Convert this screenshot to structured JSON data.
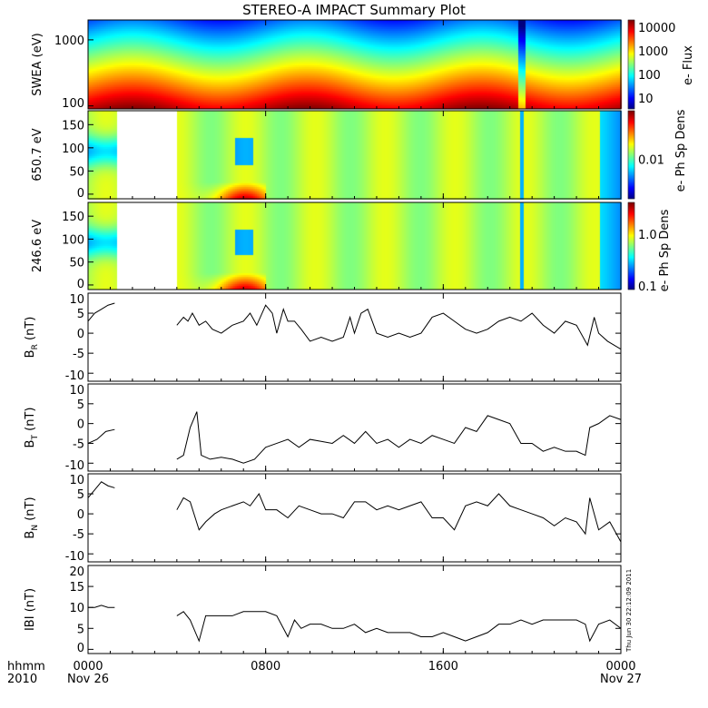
{
  "chart_data": {
    "type": "line",
    "title": "STEREO-A IMPACT Summary Plot",
    "x_unit": "hours since 2010 Nov 26 0000",
    "xlim": [
      0,
      24
    ],
    "x_ticks": [
      {
        "value": 0,
        "label": "0000",
        "sub": "Nov 26"
      },
      {
        "value": 8,
        "label": "0800",
        "sub": ""
      },
      {
        "value": 16,
        "label": "1600",
        "sub": ""
      },
      {
        "value": 24,
        "label": "0000",
        "sub": "Nov 27"
      }
    ],
    "x_axis_label": "hhmm",
    "x_axis_year": "2010",
    "timestamp": "Thu Jun 30 22:12:09 2011",
    "spectrograms": [
      {
        "ylabel": "SWEA (eV)",
        "type": "heatmap",
        "yscale": "log",
        "ylim": [
          90,
          2000
        ],
        "yticks": [
          {
            "v": 100,
            "l": "100"
          },
          {
            "v": 1000,
            "l": "1000"
          }
        ],
        "colorbar_label": "e- Flux",
        "colorbar_ticks": [
          "10",
          "100",
          "1000",
          "10000"
        ]
      },
      {
        "ylabel": "650.7 eV",
        "type": "heatmap",
        "ylim": [
          -10,
          180
        ],
        "yticks": [
          {
            "v": 0,
            "l": "0"
          },
          {
            "v": 50,
            "l": "50"
          },
          {
            "v": 100,
            "l": "100"
          },
          {
            "v": 150,
            "l": "150"
          }
        ],
        "colorbar_label": "e- Ph Sp Dens",
        "colorbar_ticks": [
          "0.01"
        ],
        "data_gap": [
          1.25,
          4.0
        ]
      },
      {
        "ylabel": "246.6 eV",
        "type": "heatmap",
        "ylim": [
          -10,
          180
        ],
        "yticks": [
          {
            "v": 0,
            "l": "0"
          },
          {
            "v": 50,
            "l": "50"
          },
          {
            "v": 100,
            "l": "100"
          },
          {
            "v": 150,
            "l": "150"
          }
        ],
        "colorbar_label": "e- Ph Sp Dens",
        "colorbar_ticks": [
          "0.1",
          "1.0"
        ],
        "data_gap": [
          1.25,
          4.0
        ]
      }
    ],
    "series": [
      {
        "name": "BR",
        "ylabel": "B",
        "sub": "R",
        "unit": "(nT)",
        "ylim": [
          -12,
          10
        ],
        "yticks": [
          -10,
          -5,
          0,
          5,
          10
        ],
        "segments": [
          [
            [
              0,
              3
            ],
            [
              0.3,
              5
            ],
            [
              0.6,
              6
            ],
            [
              0.9,
              7
            ],
            [
              1.2,
              7.5
            ]
          ],
          [
            [
              4,
              2
            ],
            [
              4.3,
              4
            ],
            [
              4.5,
              3
            ],
            [
              4.7,
              5
            ],
            [
              5,
              2
            ],
            [
              5.3,
              3
            ],
            [
              5.6,
              1
            ],
            [
              6,
              0
            ],
            [
              6.5,
              2
            ],
            [
              7,
              3
            ],
            [
              7.3,
              5
            ],
            [
              7.6,
              2
            ],
            [
              8,
              7
            ],
            [
              8.3,
              5
            ],
            [
              8.5,
              0
            ],
            [
              8.8,
              6
            ],
            [
              9,
              3
            ],
            [
              9.3,
              3
            ],
            [
              9.6,
              1
            ],
            [
              10,
              -2
            ],
            [
              10.5,
              -1
            ],
            [
              11,
              -2
            ],
            [
              11.5,
              -1
            ],
            [
              11.8,
              4
            ],
            [
              12,
              0
            ],
            [
              12.3,
              5
            ],
            [
              12.6,
              6
            ],
            [
              13,
              0
            ],
            [
              13.5,
              -1
            ],
            [
              14,
              0
            ],
            [
              14.5,
              -1
            ],
            [
              15,
              0
            ],
            [
              15.5,
              4
            ],
            [
              16,
              5
            ],
            [
              16.5,
              3
            ],
            [
              17,
              1
            ],
            [
              17.5,
              0
            ],
            [
              18,
              1
            ],
            [
              18.5,
              3
            ],
            [
              19,
              4
            ],
            [
              19.5,
              3
            ],
            [
              20,
              5
            ],
            [
              20.5,
              2
            ],
            [
              21,
              0
            ],
            [
              21.5,
              3
            ],
            [
              22,
              2
            ],
            [
              22.5,
              -3
            ],
            [
              22.8,
              4
            ],
            [
              23,
              0
            ],
            [
              23.4,
              -2
            ],
            [
              23.7,
              -3
            ],
            [
              24,
              -4
            ]
          ]
        ]
      },
      {
        "name": "BT",
        "ylabel": "B",
        "sub": "T",
        "unit": "(nT)",
        "ylim": [
          -12,
          10
        ],
        "yticks": [
          -10,
          -5,
          0,
          5,
          10
        ],
        "segments": [
          [
            [
              0,
              -5
            ],
            [
              0.4,
              -4
            ],
            [
              0.8,
              -2
            ],
            [
              1.2,
              -1.5
            ]
          ],
          [
            [
              4,
              -9
            ],
            [
              4.3,
              -8
            ],
            [
              4.6,
              -1
            ],
            [
              4.9,
              3
            ],
            [
              5.1,
              -8
            ],
            [
              5.5,
              -9
            ],
            [
              6,
              -8.5
            ],
            [
              6.5,
              -9
            ],
            [
              7,
              -10
            ],
            [
              7.5,
              -9
            ],
            [
              8,
              -6
            ],
            [
              8.5,
              -5
            ],
            [
              9,
              -4
            ],
            [
              9.5,
              -6
            ],
            [
              10,
              -4
            ],
            [
              10.5,
              -4.5
            ],
            [
              11,
              -5
            ],
            [
              11.5,
              -3
            ],
            [
              12,
              -5
            ],
            [
              12.5,
              -2
            ],
            [
              13,
              -5
            ],
            [
              13.5,
              -4
            ],
            [
              14,
              -6
            ],
            [
              14.5,
              -4
            ],
            [
              15,
              -5
            ],
            [
              15.5,
              -3
            ],
            [
              16,
              -4
            ],
            [
              16.5,
              -5
            ],
            [
              17,
              -1
            ],
            [
              17.5,
              -2
            ],
            [
              18,
              2
            ],
            [
              18.5,
              1
            ],
            [
              19,
              0
            ],
            [
              19.5,
              -5
            ],
            [
              20,
              -5
            ],
            [
              20.5,
              -7
            ],
            [
              21,
              -6
            ],
            [
              21.5,
              -7
            ],
            [
              22,
              -7
            ],
            [
              22.4,
              -8
            ],
            [
              22.6,
              -1
            ],
            [
              23,
              0
            ],
            [
              23.5,
              2
            ],
            [
              24,
              1
            ]
          ]
        ]
      },
      {
        "name": "BN",
        "ylabel": "B",
        "sub": "N",
        "unit": "(nT)",
        "ylim": [
          -12,
          10
        ],
        "yticks": [
          -10,
          -5,
          0,
          5,
          10
        ],
        "segments": [
          [
            [
              0,
              4
            ],
            [
              0.3,
              6
            ],
            [
              0.6,
              8
            ],
            [
              0.9,
              7
            ],
            [
              1.2,
              6.5
            ]
          ],
          [
            [
              4,
              1
            ],
            [
              4.3,
              4
            ],
            [
              4.6,
              3
            ],
            [
              5,
              -4
            ],
            [
              5.3,
              -2
            ],
            [
              5.7,
              0
            ],
            [
              6,
              1
            ],
            [
              6.5,
              2
            ],
            [
              7,
              3
            ],
            [
              7.3,
              2
            ],
            [
              7.7,
              5
            ],
            [
              8,
              1
            ],
            [
              8.5,
              1
            ],
            [
              9,
              -1
            ],
            [
              9.5,
              2
            ],
            [
              10,
              1
            ],
            [
              10.5,
              0
            ],
            [
              11,
              0
            ],
            [
              11.5,
              -1
            ],
            [
              12,
              3
            ],
            [
              12.5,
              3
            ],
            [
              13,
              1
            ],
            [
              13.5,
              2
            ],
            [
              14,
              1
            ],
            [
              14.5,
              2
            ],
            [
              15,
              3
            ],
            [
              15.5,
              -1
            ],
            [
              16,
              -1
            ],
            [
              16.5,
              -4
            ],
            [
              17,
              2
            ],
            [
              17.5,
              3
            ],
            [
              18,
              2
            ],
            [
              18.5,
              5
            ],
            [
              19,
              2
            ],
            [
              19.5,
              1
            ],
            [
              20,
              0
            ],
            [
              20.5,
              -1
            ],
            [
              21,
              -3
            ],
            [
              21.5,
              -1
            ],
            [
              22,
              -2
            ],
            [
              22.4,
              -5
            ],
            [
              22.6,
              4
            ],
            [
              23,
              -4
            ],
            [
              23.5,
              -2
            ],
            [
              24,
              -7
            ]
          ]
        ]
      },
      {
        "name": "|B|",
        "ylabel": "IBI",
        "sub": "",
        "unit": "(nT)",
        "ylim": [
          -1,
          20
        ],
        "yticks": [
          0,
          5,
          10,
          15,
          20
        ],
        "segments": [
          [
            [
              0,
              10
            ],
            [
              0.3,
              10
            ],
            [
              0.6,
              10.5
            ],
            [
              0.9,
              10
            ],
            [
              1.2,
              10
            ]
          ],
          [
            [
              4,
              8
            ],
            [
              4.3,
              9
            ],
            [
              4.6,
              7
            ],
            [
              5,
              2
            ],
            [
              5.3,
              8
            ],
            [
              6,
              8
            ],
            [
              6.5,
              8
            ],
            [
              7,
              9
            ],
            [
              7.5,
              9
            ],
            [
              8,
              9
            ],
            [
              8.5,
              8
            ],
            [
              9,
              3
            ],
            [
              9.3,
              7
            ],
            [
              9.6,
              5
            ],
            [
              10,
              6
            ],
            [
              10.5,
              6
            ],
            [
              11,
              5
            ],
            [
              11.5,
              5
            ],
            [
              12,
              6
            ],
            [
              12.5,
              4
            ],
            [
              13,
              5
            ],
            [
              13.5,
              4
            ],
            [
              14,
              4
            ],
            [
              14.5,
              4
            ],
            [
              15,
              3
            ],
            [
              15.5,
              3
            ],
            [
              16,
              4
            ],
            [
              16.5,
              3
            ],
            [
              17,
              2
            ],
            [
              17.5,
              3
            ],
            [
              18,
              4
            ],
            [
              18.5,
              6
            ],
            [
              19,
              6
            ],
            [
              19.5,
              7
            ],
            [
              20,
              6
            ],
            [
              20.5,
              7
            ],
            [
              21,
              7
            ],
            [
              21.5,
              7
            ],
            [
              22,
              7
            ],
            [
              22.4,
              6
            ],
            [
              22.6,
              2
            ],
            [
              23,
              6
            ],
            [
              23.5,
              7
            ],
            [
              24,
              5
            ]
          ]
        ]
      }
    ]
  }
}
